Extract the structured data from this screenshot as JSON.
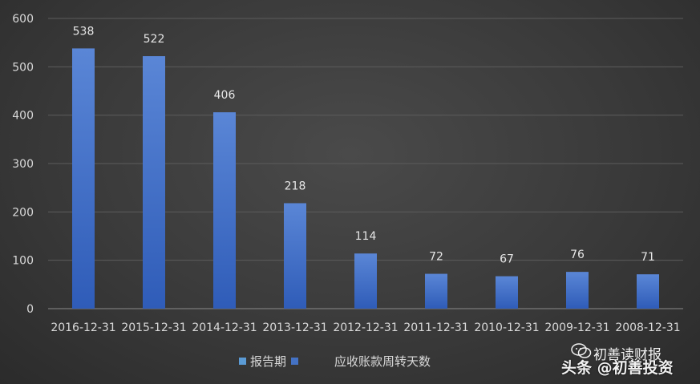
{
  "chart_data": {
    "type": "bar",
    "categories": [
      "2016-12-31",
      "2015-12-31",
      "2014-12-31",
      "2013-12-31",
      "2012-12-31",
      "2011-12-31",
      "2010-12-31",
      "2009-12-31",
      "2008-12-31"
    ],
    "series": [
      {
        "name": "应收账款周转天数",
        "values": [
          538,
          522,
          406,
          218,
          114,
          72,
          67,
          76,
          71
        ]
      }
    ],
    "data_labels": [
      "538",
      "522",
      "406",
      "218",
      "114",
      "72",
      "67",
      "76",
      "71"
    ],
    "ylim": [
      0,
      600
    ],
    "yticks": [
      0,
      100,
      200,
      300,
      400,
      500,
      600
    ],
    "ytick_labels": [
      "0",
      "100",
      "200",
      "300",
      "400",
      "500",
      "600"
    ],
    "grid": true,
    "legend_position": "bottom",
    "legend": [
      {
        "label": "报告期",
        "color": "#5b9bd5"
      },
      {
        "label": "应收账款周转天数",
        "color": "#4472c4"
      }
    ],
    "colors": {
      "bar_top": "#5a86d6",
      "bar_bottom": "#2f5cb8"
    }
  },
  "watermark": {
    "line1": "初善读财报",
    "line2": "头条 @初善投资",
    "icon": "wechat-icon"
  }
}
